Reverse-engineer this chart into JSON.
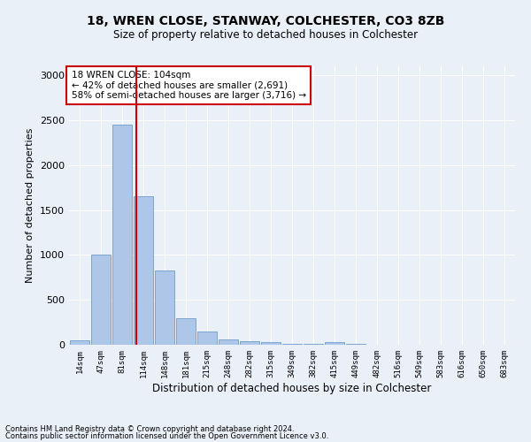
{
  "title1": "18, WREN CLOSE, STANWAY, COLCHESTER, CO3 8ZB",
  "title2": "Size of property relative to detached houses in Colchester",
  "xlabel": "Distribution of detached houses by size in Colchester",
  "ylabel": "Number of detached properties",
  "footnote1": "Contains HM Land Registry data © Crown copyright and database right 2024.",
  "footnote2": "Contains public sector information licensed under the Open Government Licence v3.0.",
  "annotation_line1": "18 WREN CLOSE: 104sqm",
  "annotation_line2": "← 42% of detached houses are smaller (2,691)",
  "annotation_line3": "58% of semi-detached houses are larger (3,716) →",
  "bar_labels": [
    "14sqm",
    "47sqm",
    "81sqm",
    "114sqm",
    "148sqm",
    "181sqm",
    "215sqm",
    "248sqm",
    "282sqm",
    "315sqm",
    "349sqm",
    "382sqm",
    "415sqm",
    "449sqm",
    "482sqm",
    "516sqm",
    "549sqm",
    "583sqm",
    "616sqm",
    "650sqm",
    "683sqm"
  ],
  "bar_values": [
    50,
    1000,
    2450,
    1650,
    830,
    300,
    150,
    55,
    40,
    30,
    5,
    5,
    30,
    5,
    0,
    0,
    0,
    0,
    0,
    0,
    0
  ],
  "bar_color": "#aec6e8",
  "bar_edge_color": "#5a8fc2",
  "vline_x": 2.67,
  "vline_color": "#cc0000",
  "ylim": [
    0,
    3100
  ],
  "yticks": [
    0,
    500,
    1000,
    1500,
    2000,
    2500,
    3000
  ],
  "bg_color": "#eaf0f8",
  "grid_color": "#ffffff",
  "annotation_box_color": "#ffffff",
  "annotation_box_edge": "#cc0000"
}
